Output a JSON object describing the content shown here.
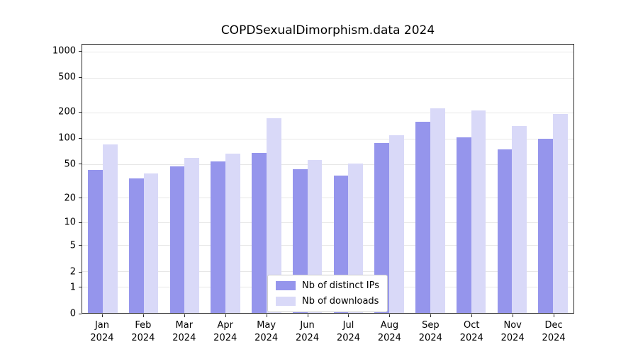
{
  "chart_data": {
    "type": "bar",
    "title": "COPDSexualDimorphism.data 2024",
    "xlabel": "",
    "ylabel": "",
    "yscale": "log1p",
    "ylim": [
      0,
      1209
    ],
    "grid": true,
    "legend_position": "bottom-center",
    "yticks": [
      0,
      1,
      2,
      5,
      10,
      20,
      50,
      100,
      200,
      500,
      1000
    ],
    "ytick_labels": [
      "0",
      "1",
      "2",
      "5",
      "10",
      "20",
      "50",
      "100",
      "200",
      "500",
      "1000"
    ],
    "categories": [
      "Jan",
      "Feb",
      "Mar",
      "Apr",
      "May",
      "Jun",
      "Jul",
      "Aug",
      "Sep",
      "Oct",
      "Nov",
      "Dec"
    ],
    "category_sublabel": "2024",
    "series": [
      {
        "name": "Nb of distinct IPs",
        "color": "#9595ec",
        "values": [
          43,
          34,
          47,
          54,
          68,
          44,
          37,
          88,
          155,
          103,
          74,
          99
        ]
      },
      {
        "name": "Nb of downloads",
        "color": "#d9d9f8",
        "values": [
          85,
          39,
          60,
          67,
          171,
          56,
          51,
          110,
          222,
          210,
          139,
          191
        ]
      }
    ],
    "colors": {
      "gridline": "#e7e7e7",
      "frame": "#2b2b2b",
      "background": "#ffffff"
    }
  }
}
